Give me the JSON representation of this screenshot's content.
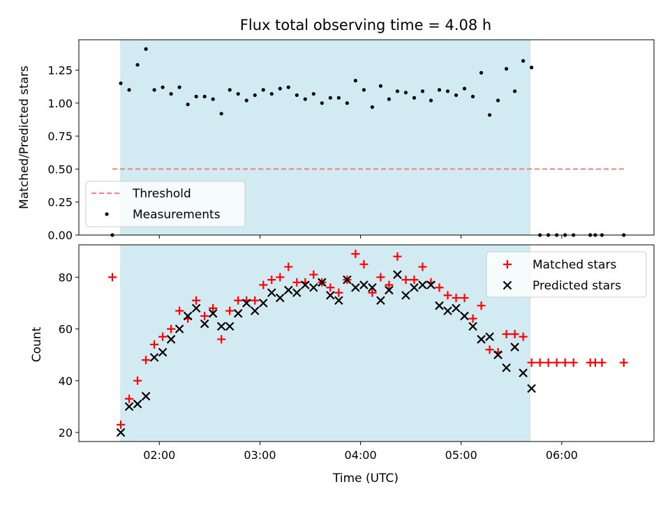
{
  "chart_data": [
    {
      "type": "scatter",
      "title": "Flux total observing time = 4.08 h",
      "xlabel": "",
      "ylabel": "Matched/Predicted stars",
      "xlim": [
        "01:12",
        "06:55"
      ],
      "ylim": [
        0,
        1.48
      ],
      "x_ticks": [
        "02:00",
        "03:00",
        "04:00",
        "05:00",
        "06:00"
      ],
      "x_tick_labels_shown": false,
      "y_ticks": [
        "0.00",
        "0.25",
        "0.50",
        "0.75",
        "1.00",
        "1.25"
      ],
      "grid": false,
      "legend_placement": "lower-left",
      "observing_window": {
        "start": "01:37",
        "end": "05:41",
        "color": "#add8e6"
      },
      "threshold": {
        "name": "Threshold",
        "value": 0.5,
        "x_start": "01:32",
        "x_end": "06:37",
        "color": "#f08080"
      },
      "series": [
        {
          "name": "Measurements",
          "color": "#000000",
          "marker": "dot",
          "x": [
            "01:32",
            "01:37",
            "01:42",
            "01:47",
            "01:52",
            "01:57",
            "02:02",
            "02:07",
            "02:12",
            "02:17",
            "02:22",
            "02:27",
            "02:32",
            "02:37",
            "02:42",
            "02:47",
            "02:52",
            "02:57",
            "03:02",
            "03:07",
            "03:12",
            "03:17",
            "03:22",
            "03:27",
            "03:32",
            "03:37",
            "03:42",
            "03:47",
            "03:52",
            "03:57",
            "04:02",
            "04:07",
            "04:12",
            "04:17",
            "04:22",
            "04:27",
            "04:32",
            "04:37",
            "04:42",
            "04:47",
            "04:52",
            "04:57",
            "05:02",
            "05:07",
            "05:12",
            "05:17",
            "05:22",
            "05:27",
            "05:32",
            "05:37",
            "05:42",
            "05:47",
            "05:52",
            "05:57",
            "06:02",
            "06:07",
            "06:17",
            "06:20",
            "06:24",
            "06:37"
          ],
          "y": [
            0.0,
            1.15,
            1.1,
            1.29,
            1.41,
            1.1,
            1.12,
            1.07,
            1.12,
            0.99,
            1.05,
            1.05,
            1.03,
            0.92,
            1.1,
            1.07,
            1.02,
            1.06,
            1.1,
            1.07,
            1.11,
            1.12,
            1.06,
            1.03,
            1.07,
            1.0,
            1.04,
            1.04,
            1.0,
            1.17,
            1.1,
            0.97,
            1.13,
            1.03,
            1.09,
            1.08,
            1.04,
            1.09,
            1.02,
            1.1,
            1.09,
            1.06,
            1.11,
            1.05,
            1.23,
            0.91,
            1.02,
            1.26,
            1.09,
            1.32,
            1.27,
            0.0,
            0.0,
            0.0,
            0.0,
            0.0,
            0.0,
            0.0,
            0.0,
            0.0
          ]
        }
      ]
    },
    {
      "type": "scatter",
      "title": "",
      "xlabel": "Time (UTC)",
      "ylabel": "Count",
      "xlim": [
        "01:12",
        "06:55"
      ],
      "ylim": [
        16.5,
        92.5
      ],
      "x_ticks": [
        "02:00",
        "03:00",
        "04:00",
        "05:00",
        "06:00"
      ],
      "y_ticks": [
        20,
        40,
        60,
        80
      ],
      "grid": false,
      "legend_placement": "top-right",
      "observing_window": {
        "start": "01:37",
        "end": "05:41",
        "color": "#add8e6"
      },
      "series": [
        {
          "name": "Matched stars",
          "color": "#ff0000",
          "marker": "plus",
          "x": [
            "01:32",
            "01:37",
            "01:42",
            "01:47",
            "01:52",
            "01:57",
            "02:02",
            "02:07",
            "02:12",
            "02:17",
            "02:22",
            "02:27",
            "02:32",
            "02:37",
            "02:42",
            "02:47",
            "02:52",
            "02:57",
            "03:02",
            "03:07",
            "03:12",
            "03:17",
            "03:22",
            "03:27",
            "03:32",
            "03:37",
            "03:42",
            "03:47",
            "03:52",
            "03:57",
            "04:02",
            "04:07",
            "04:12",
            "04:17",
            "04:22",
            "04:27",
            "04:32",
            "04:37",
            "04:42",
            "04:47",
            "04:52",
            "04:57",
            "05:02",
            "05:07",
            "05:12",
            "05:17",
            "05:22",
            "05:27",
            "05:32",
            "05:37",
            "05:42",
            "05:47",
            "05:52",
            "05:57",
            "06:02",
            "06:07",
            "06:17",
            "06:20",
            "06:24",
            "06:37"
          ],
          "y": [
            80,
            23,
            33,
            40,
            48,
            54,
            57,
            60,
            67,
            64,
            71,
            65,
            68,
            56,
            67,
            71,
            71,
            71,
            77,
            79,
            80,
            84,
            78,
            78,
            81,
            78,
            76,
            74,
            79,
            89,
            85,
            74,
            80,
            77,
            88,
            79,
            79,
            84,
            78,
            76,
            73,
            72,
            72,
            64,
            69,
            52,
            51,
            58,
            58,
            57,
            47,
            47,
            47,
            47,
            47,
            47,
            47,
            47,
            47,
            47
          ]
        },
        {
          "name": "Predicted stars",
          "color": "#000000",
          "marker": "x",
          "x": [
            "01:37",
            "01:42",
            "01:47",
            "01:52",
            "01:57",
            "02:02",
            "02:07",
            "02:12",
            "02:17",
            "02:22",
            "02:27",
            "02:32",
            "02:37",
            "02:42",
            "02:47",
            "02:52",
            "02:57",
            "03:02",
            "03:07",
            "03:12",
            "03:17",
            "03:22",
            "03:27",
            "03:32",
            "03:37",
            "03:42",
            "03:47",
            "03:52",
            "03:57",
            "04:02",
            "04:07",
            "04:12",
            "04:17",
            "04:22",
            "04:27",
            "04:32",
            "04:37",
            "04:42",
            "04:47",
            "04:52",
            "04:57",
            "05:02",
            "05:07",
            "05:12",
            "05:17",
            "05:22",
            "05:27",
            "05:32",
            "05:37",
            "05:42"
          ],
          "y": [
            20,
            30,
            31,
            34,
            49,
            51,
            56,
            60,
            65,
            68,
            62,
            66,
            61,
            61,
            66,
            70,
            67,
            70,
            74,
            72,
            75,
            74,
            77,
            76,
            78,
            73,
            71,
            79,
            76,
            77,
            76,
            71,
            75,
            81,
            73,
            76,
            77,
            77,
            69,
            67,
            68,
            65,
            61,
            56,
            57,
            50,
            45,
            53,
            43,
            37
          ]
        }
      ]
    }
  ]
}
